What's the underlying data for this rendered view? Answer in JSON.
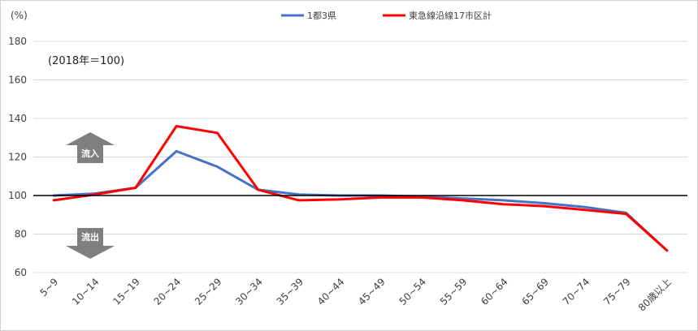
{
  "chart_data": {
    "type": "line",
    "unit_label": "(%)",
    "note": "(2018年＝100)",
    "categories": [
      "5~9",
      "10~14",
      "15~19",
      "20~24",
      "25~29",
      "30~34",
      "35~39",
      "40~44",
      "45~49",
      "50~54",
      "55~59",
      "60~64",
      "65~69",
      "70~74",
      "75~79",
      "80歳以上"
    ],
    "series": [
      {
        "name": "1都3県",
        "color": "#4472C4",
        "values": [
          100,
          101,
          104,
          123,
          115,
          103,
          100.5,
          100,
          100,
          99.5,
          98.5,
          97.5,
          96,
          94,
          91,
          71.5
        ]
      },
      {
        "name": "東急線沿線17市区計",
        "color": "#FF0000",
        "values": [
          97.5,
          100.5,
          104,
          136,
          132.5,
          103,
          97.5,
          98,
          99,
          99,
          97.5,
          95.5,
          94.5,
          92.5,
          90.5,
          71.5
        ]
      }
    ],
    "ylim": [
      60,
      180
    ],
    "yticks": [
      60,
      80,
      100,
      120,
      140,
      160,
      180
    ],
    "reference_line": 100,
    "grid": true,
    "legend_position": "top-center",
    "annotations": {
      "inflow": "流入",
      "outflow": "流出"
    },
    "arrow_color": "#7f7f7f"
  }
}
